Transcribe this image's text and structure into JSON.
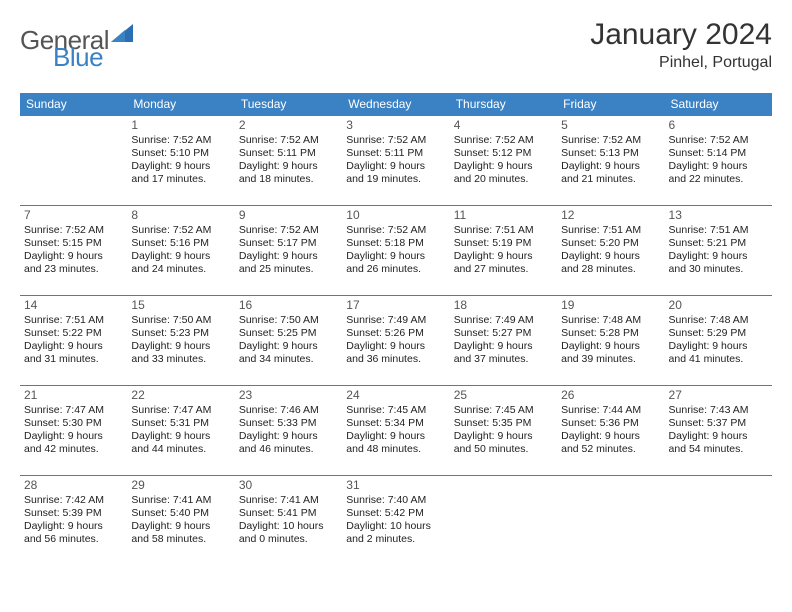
{
  "logo": {
    "general": "General",
    "blue": "Blue"
  },
  "title": "January 2024",
  "location": "Pinhel, Portugal",
  "colors": {
    "accent": "#3a82c4",
    "text": "#333333",
    "bg": "#ffffff"
  },
  "day_headers": [
    "Sunday",
    "Monday",
    "Tuesday",
    "Wednesday",
    "Thursday",
    "Friday",
    "Saturday"
  ],
  "weeks": [
    [
      null,
      {
        "n": "1",
        "sr": "Sunrise: 7:52 AM",
        "ss": "Sunset: 5:10 PM",
        "d1": "Daylight: 9 hours",
        "d2": "and 17 minutes."
      },
      {
        "n": "2",
        "sr": "Sunrise: 7:52 AM",
        "ss": "Sunset: 5:11 PM",
        "d1": "Daylight: 9 hours",
        "d2": "and 18 minutes."
      },
      {
        "n": "3",
        "sr": "Sunrise: 7:52 AM",
        "ss": "Sunset: 5:11 PM",
        "d1": "Daylight: 9 hours",
        "d2": "and 19 minutes."
      },
      {
        "n": "4",
        "sr": "Sunrise: 7:52 AM",
        "ss": "Sunset: 5:12 PM",
        "d1": "Daylight: 9 hours",
        "d2": "and 20 minutes."
      },
      {
        "n": "5",
        "sr": "Sunrise: 7:52 AM",
        "ss": "Sunset: 5:13 PM",
        "d1": "Daylight: 9 hours",
        "d2": "and 21 minutes."
      },
      {
        "n": "6",
        "sr": "Sunrise: 7:52 AM",
        "ss": "Sunset: 5:14 PM",
        "d1": "Daylight: 9 hours",
        "d2": "and 22 minutes."
      }
    ],
    [
      {
        "n": "7",
        "sr": "Sunrise: 7:52 AM",
        "ss": "Sunset: 5:15 PM",
        "d1": "Daylight: 9 hours",
        "d2": "and 23 minutes."
      },
      {
        "n": "8",
        "sr": "Sunrise: 7:52 AM",
        "ss": "Sunset: 5:16 PM",
        "d1": "Daylight: 9 hours",
        "d2": "and 24 minutes."
      },
      {
        "n": "9",
        "sr": "Sunrise: 7:52 AM",
        "ss": "Sunset: 5:17 PM",
        "d1": "Daylight: 9 hours",
        "d2": "and 25 minutes."
      },
      {
        "n": "10",
        "sr": "Sunrise: 7:52 AM",
        "ss": "Sunset: 5:18 PM",
        "d1": "Daylight: 9 hours",
        "d2": "and 26 minutes."
      },
      {
        "n": "11",
        "sr": "Sunrise: 7:51 AM",
        "ss": "Sunset: 5:19 PM",
        "d1": "Daylight: 9 hours",
        "d2": "and 27 minutes."
      },
      {
        "n": "12",
        "sr": "Sunrise: 7:51 AM",
        "ss": "Sunset: 5:20 PM",
        "d1": "Daylight: 9 hours",
        "d2": "and 28 minutes."
      },
      {
        "n": "13",
        "sr": "Sunrise: 7:51 AM",
        "ss": "Sunset: 5:21 PM",
        "d1": "Daylight: 9 hours",
        "d2": "and 30 minutes."
      }
    ],
    [
      {
        "n": "14",
        "sr": "Sunrise: 7:51 AM",
        "ss": "Sunset: 5:22 PM",
        "d1": "Daylight: 9 hours",
        "d2": "and 31 minutes."
      },
      {
        "n": "15",
        "sr": "Sunrise: 7:50 AM",
        "ss": "Sunset: 5:23 PM",
        "d1": "Daylight: 9 hours",
        "d2": "and 33 minutes."
      },
      {
        "n": "16",
        "sr": "Sunrise: 7:50 AM",
        "ss": "Sunset: 5:25 PM",
        "d1": "Daylight: 9 hours",
        "d2": "and 34 minutes."
      },
      {
        "n": "17",
        "sr": "Sunrise: 7:49 AM",
        "ss": "Sunset: 5:26 PM",
        "d1": "Daylight: 9 hours",
        "d2": "and 36 minutes."
      },
      {
        "n": "18",
        "sr": "Sunrise: 7:49 AM",
        "ss": "Sunset: 5:27 PM",
        "d1": "Daylight: 9 hours",
        "d2": "and 37 minutes."
      },
      {
        "n": "19",
        "sr": "Sunrise: 7:48 AM",
        "ss": "Sunset: 5:28 PM",
        "d1": "Daylight: 9 hours",
        "d2": "and 39 minutes."
      },
      {
        "n": "20",
        "sr": "Sunrise: 7:48 AM",
        "ss": "Sunset: 5:29 PM",
        "d1": "Daylight: 9 hours",
        "d2": "and 41 minutes."
      }
    ],
    [
      {
        "n": "21",
        "sr": "Sunrise: 7:47 AM",
        "ss": "Sunset: 5:30 PM",
        "d1": "Daylight: 9 hours",
        "d2": "and 42 minutes."
      },
      {
        "n": "22",
        "sr": "Sunrise: 7:47 AM",
        "ss": "Sunset: 5:31 PM",
        "d1": "Daylight: 9 hours",
        "d2": "and 44 minutes."
      },
      {
        "n": "23",
        "sr": "Sunrise: 7:46 AM",
        "ss": "Sunset: 5:33 PM",
        "d1": "Daylight: 9 hours",
        "d2": "and 46 minutes."
      },
      {
        "n": "24",
        "sr": "Sunrise: 7:45 AM",
        "ss": "Sunset: 5:34 PM",
        "d1": "Daylight: 9 hours",
        "d2": "and 48 minutes."
      },
      {
        "n": "25",
        "sr": "Sunrise: 7:45 AM",
        "ss": "Sunset: 5:35 PM",
        "d1": "Daylight: 9 hours",
        "d2": "and 50 minutes."
      },
      {
        "n": "26",
        "sr": "Sunrise: 7:44 AM",
        "ss": "Sunset: 5:36 PM",
        "d1": "Daylight: 9 hours",
        "d2": "and 52 minutes."
      },
      {
        "n": "27",
        "sr": "Sunrise: 7:43 AM",
        "ss": "Sunset: 5:37 PM",
        "d1": "Daylight: 9 hours",
        "d2": "and 54 minutes."
      }
    ],
    [
      {
        "n": "28",
        "sr": "Sunrise: 7:42 AM",
        "ss": "Sunset: 5:39 PM",
        "d1": "Daylight: 9 hours",
        "d2": "and 56 minutes."
      },
      {
        "n": "29",
        "sr": "Sunrise: 7:41 AM",
        "ss": "Sunset: 5:40 PM",
        "d1": "Daylight: 9 hours",
        "d2": "and 58 minutes."
      },
      {
        "n": "30",
        "sr": "Sunrise: 7:41 AM",
        "ss": "Sunset: 5:41 PM",
        "d1": "Daylight: 10 hours",
        "d2": "and 0 minutes."
      },
      {
        "n": "31",
        "sr": "Sunrise: 7:40 AM",
        "ss": "Sunset: 5:42 PM",
        "d1": "Daylight: 10 hours",
        "d2": "and 2 minutes."
      },
      null,
      null,
      null
    ]
  ]
}
